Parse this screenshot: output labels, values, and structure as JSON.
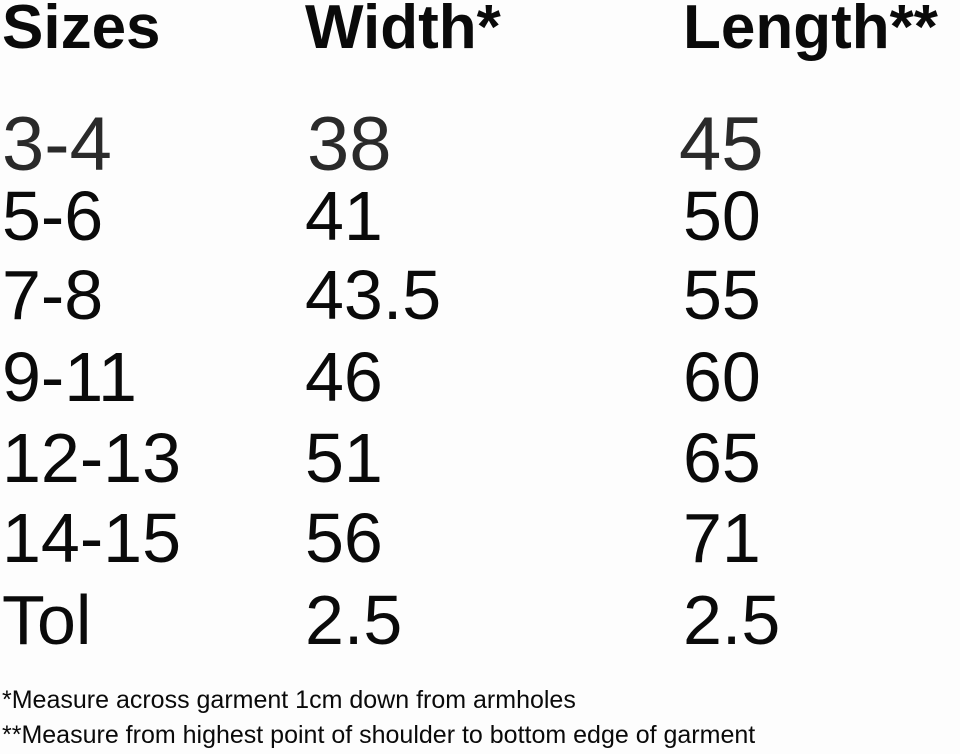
{
  "headers": [
    "Sizes",
    "Width*",
    "Length**"
  ],
  "rows": [
    [
      "3-4",
      "38",
      "45"
    ],
    [
      "5-6",
      "41",
      "50"
    ],
    [
      "7-8",
      "43.5",
      "55"
    ],
    [
      "9-11",
      "46",
      "60"
    ],
    [
      "12-13",
      "51",
      "65"
    ],
    [
      "14-15",
      "56",
      "71"
    ],
    [
      "Tol",
      "2.5",
      "2.5"
    ]
  ],
  "footnotes": [
    "*Measure across garment 1cm down from armholes",
    "**Measure from highest point of shoulder to bottom edge of garment"
  ]
}
